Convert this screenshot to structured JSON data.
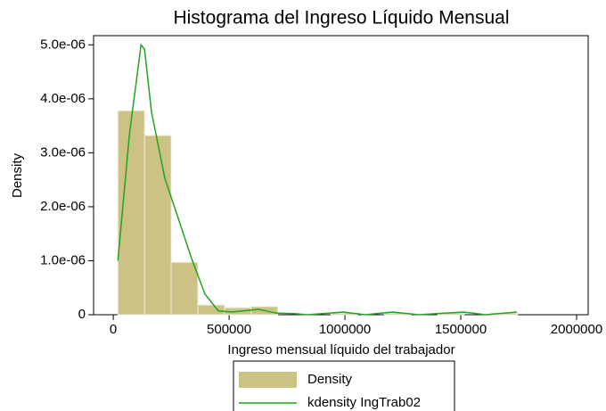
{
  "chart_data": {
    "type": "histogram",
    "title": "Histograma del Ingreso Líquido Mensual",
    "x_label": "Ingreso mensual líquido del trabajador",
    "y_label": "Density",
    "xlim": [
      -85000,
      2050000
    ],
    "ylim": [
      0,
      5.17e-06
    ],
    "xticks": [
      0,
      500000,
      1000000,
      1500000,
      2000000
    ],
    "yticks": [
      0,
      {
        "value": 1e-06,
        "label": "1.0e-06"
      },
      {
        "value": 2e-06,
        "label": "2.0e-06"
      },
      {
        "value": 3e-06,
        "label": "3.0e-06"
      },
      {
        "value": 4e-06,
        "label": "4.0e-06"
      },
      {
        "value": 5e-06,
        "label": "5.0e-06"
      }
    ],
    "series": [
      {
        "name": "Density",
        "type": "histogram",
        "color": "#ccc283",
        "bins": [
          20000,
          135000,
          250000,
          365000,
          480000,
          595000,
          710000,
          825000,
          940000,
          1055000,
          1170000,
          1285000,
          1400000,
          1515000,
          1630000,
          1745000
        ],
        "values": [
          3.78e-06,
          3.32e-06,
          9.7e-07,
          1.8e-07,
          1.3e-07,
          1.5e-07,
          0,
          0,
          3e-08,
          0,
          3e-08,
          0,
          3e-08,
          0,
          3e-08
        ]
      },
      {
        "name": "kdensity IngTrab02",
        "type": "line",
        "color": "#1fa51f",
        "x": [
          20000,
          70000,
          120000,
          135000,
          165000,
          223000,
          281000,
          338000,
          396000,
          454000,
          512000,
          627000,
          704000,
          781000,
          838000,
          992000,
          1088000,
          1204000,
          1319000,
          1512000,
          1608000,
          1742000
        ],
        "values": [
          1e-06,
          3.35e-06,
          5e-06,
          4.92e-06,
          3.76e-06,
          2.52e-06,
          1.78e-06,
          1.04e-06,
          3.8e-07,
          7e-08,
          5e-08,
          1e-07,
          3e-08,
          2e-08,
          0,
          5e-08,
          0,
          5e-08,
          0,
          5e-08,
          0,
          5e-08
        ]
      }
    ]
  }
}
